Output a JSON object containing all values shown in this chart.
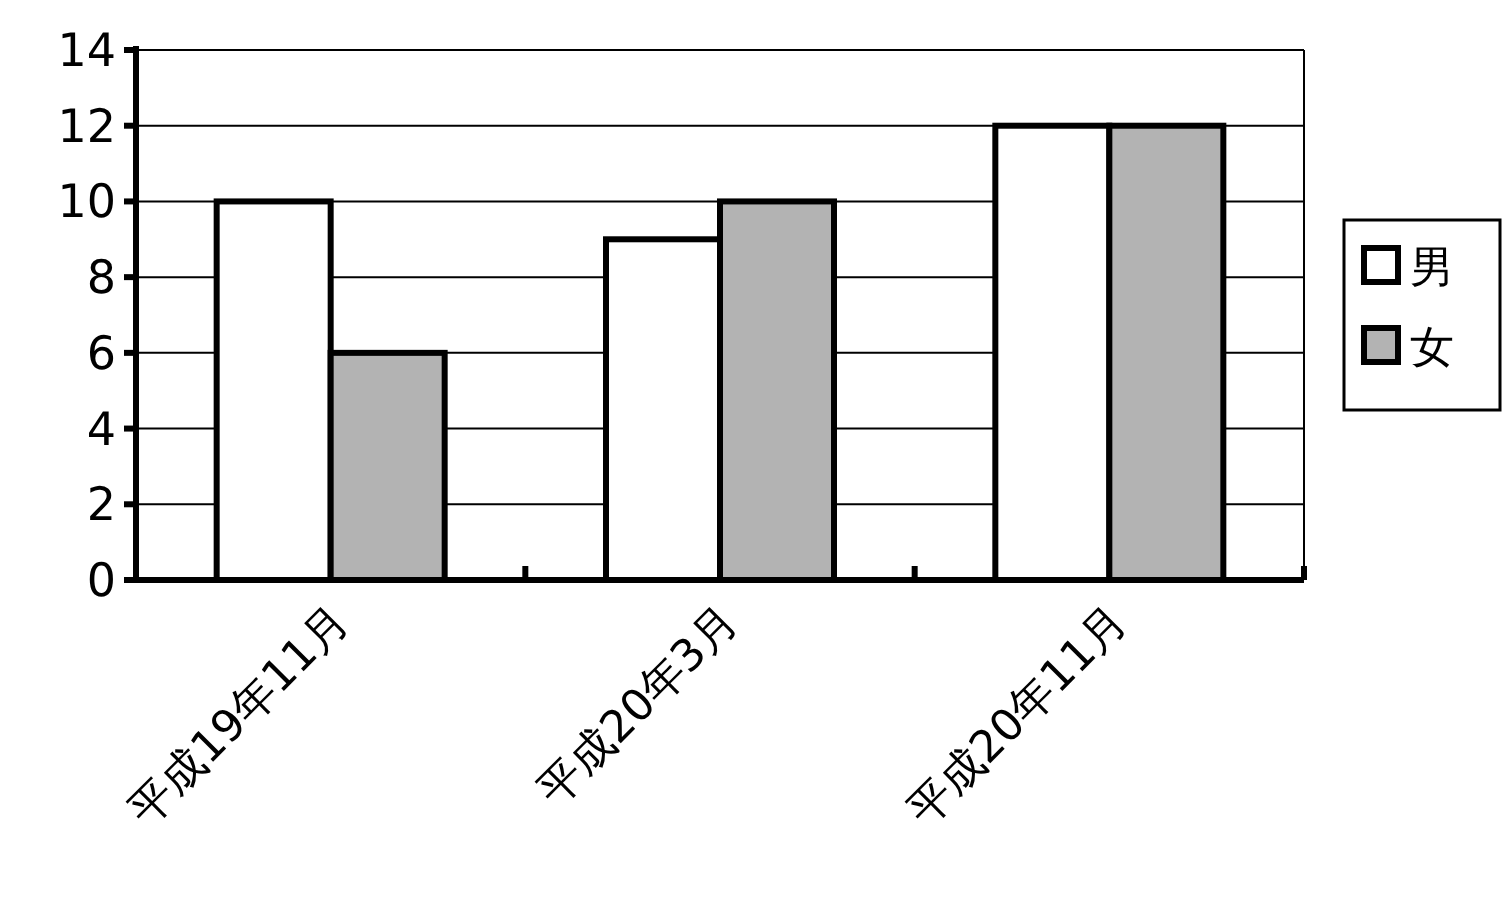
{
  "chart_data": {
    "type": "bar",
    "categories": [
      "平成19年11月",
      "平成20年3月",
      "平成20年11月"
    ],
    "series": [
      {
        "name": "男",
        "color": "#ffffff",
        "values": [
          10,
          9,
          12
        ]
      },
      {
        "name": "女",
        "color": "#b3b3b3",
        "values": [
          6,
          10,
          12
        ]
      }
    ],
    "ylim": [
      0,
      14
    ],
    "yticks": [
      0,
      2,
      4,
      6,
      8,
      10,
      12,
      14
    ],
    "grid": "y",
    "legend": "right"
  }
}
